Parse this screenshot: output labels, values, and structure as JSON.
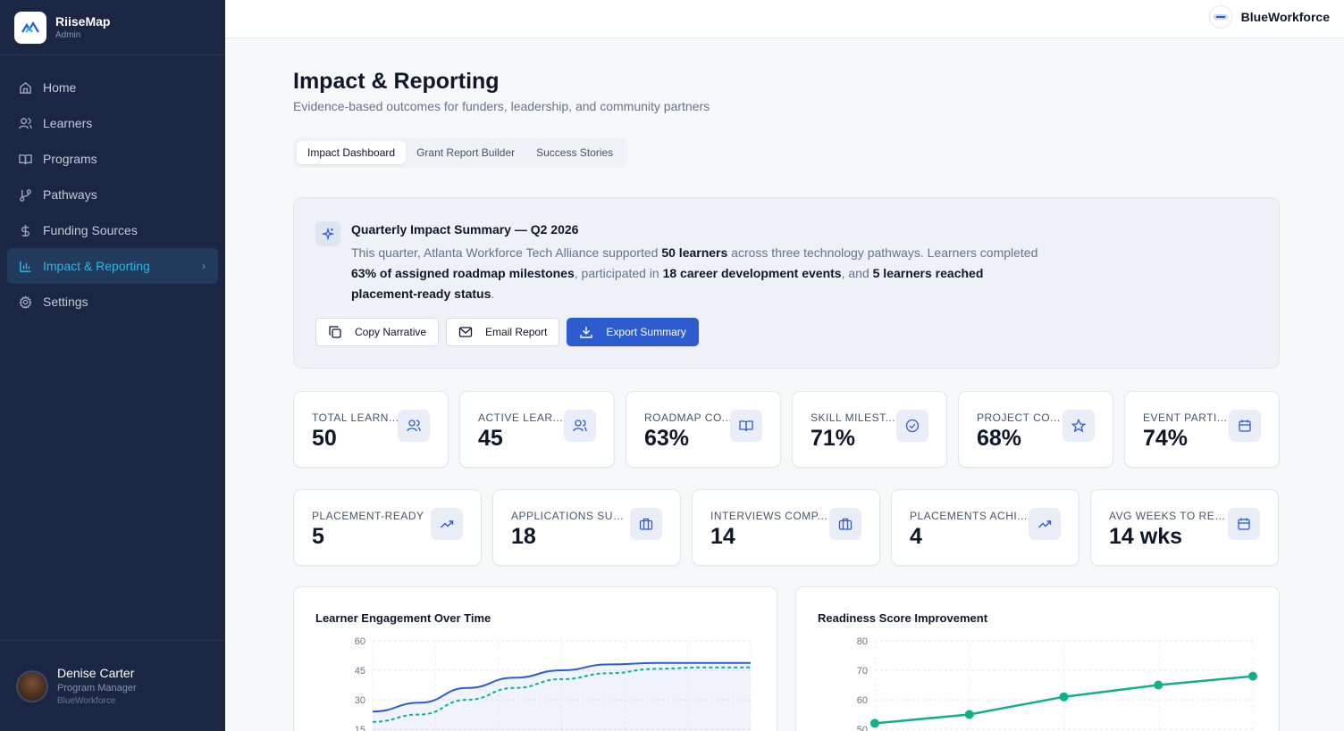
{
  "app": {
    "name": "RiiseMap",
    "role": "Admin"
  },
  "sidebar": {
    "items": [
      {
        "label": "Home",
        "icon": "home-icon"
      },
      {
        "label": "Learners",
        "icon": "users-icon"
      },
      {
        "label": "Programs",
        "icon": "book-icon"
      },
      {
        "label": "Pathways",
        "icon": "branch-icon"
      },
      {
        "label": "Funding Sources",
        "icon": "dollar-icon"
      },
      {
        "label": "Impact & Reporting",
        "icon": "bar-chart-icon",
        "active": true
      },
      {
        "label": "Settings",
        "icon": "gear-icon"
      }
    ]
  },
  "user": {
    "name": "Denise Carter",
    "title": "Program Manager",
    "org": "BlueWorkforce"
  },
  "topbar": {
    "org_name": "BlueWorkforce"
  },
  "page": {
    "title": "Impact & Reporting",
    "subtitle": "Evidence-based outcomes for funders, leadership, and community partners"
  },
  "tabs": [
    {
      "label": "Impact Dashboard",
      "active": true
    },
    {
      "label": "Grant Report Builder"
    },
    {
      "label": "Success Stories"
    }
  ],
  "summary": {
    "title": "Quarterly Impact Summary — Q2 2026",
    "body": {
      "p1": "This quarter, Atlanta Workforce Tech Alliance supported ",
      "b1": "50 learners",
      "p2": " across three technology pathways. Learners completed ",
      "b2": "63% of assigned roadmap milestones",
      "p3": ", participated in ",
      "b3": "18 career development events",
      "p4": ", and ",
      "b4": "5 learners reached placement-ready status",
      "p5": "."
    },
    "buttons": {
      "copy": "Copy Narrative",
      "email": "Email Report",
      "export": "Export Summary"
    }
  },
  "stats_row1": [
    {
      "label": "TOTAL LEARN...",
      "value": "50",
      "icon": "users-icon"
    },
    {
      "label": "ACTIVE LEAR...",
      "value": "45",
      "icon": "users-icon"
    },
    {
      "label": "ROADMAP CO...",
      "value": "63%",
      "icon": "book-icon"
    },
    {
      "label": "SKILL MILEST...",
      "value": "71%",
      "icon": "check-circle-icon"
    },
    {
      "label": "PROJECT CO...",
      "value": "68%",
      "icon": "star-icon"
    },
    {
      "label": "EVENT PARTI...",
      "value": "74%",
      "icon": "calendar-icon"
    }
  ],
  "stats_row2": [
    {
      "label": "PLACEMENT-READY",
      "value": "5",
      "icon": "trending-up-icon"
    },
    {
      "label": "APPLICATIONS SUB...",
      "value": "18",
      "icon": "briefcase-icon"
    },
    {
      "label": "INTERVIEWS COMP...",
      "value": "14",
      "icon": "briefcase-icon"
    },
    {
      "label": "PLACEMENTS ACHI...",
      "value": "4",
      "icon": "trending-up-icon"
    },
    {
      "label": "AVG WEEKS TO REA...",
      "value": "14 wks",
      "icon": "calendar-icon"
    }
  ],
  "colors": {
    "primary": "#2d5bd0",
    "accent": "#2fb6e8",
    "teal": "#10b08a",
    "sidebar": "#1b2642"
  },
  "chart_data": [
    {
      "type": "area",
      "title": "Learner Engagement Over Time",
      "yticks": [
        "60",
        "45",
        "30",
        "15"
      ],
      "ylim": [
        0,
        60
      ],
      "series": [
        {
          "values": [
            12,
            18,
            28,
            35,
            40,
            44,
            45,
            45,
            45
          ]
        },
        {
          "values": [
            5,
            10,
            20,
            28,
            34,
            38,
            41,
            42,
            42
          ]
        }
      ]
    },
    {
      "type": "line",
      "title": "Readiness Score Improvement",
      "yticks": [
        "80",
        "70",
        "60",
        "50"
      ],
      "ylim": [
        50,
        80
      ],
      "series": [
        {
          "values": [
            52,
            55,
            61,
            65,
            68
          ]
        }
      ]
    }
  ]
}
